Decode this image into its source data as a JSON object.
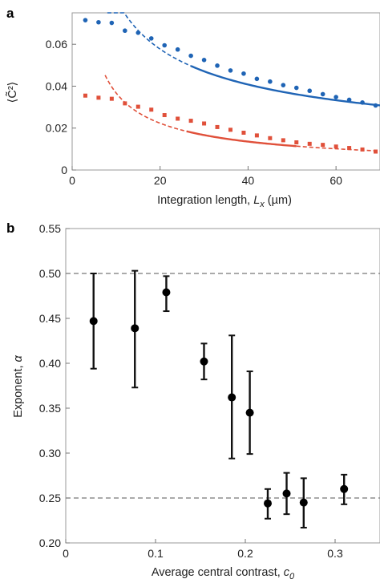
{
  "chart_data": [
    {
      "panel_label": "a",
      "type": "scatter",
      "xlabel": "Integration length, ",
      "xlabel_var": "L",
      "xlabel_sub": "x",
      "xlabel_unit": " (µm)",
      "ylabel": "⟨C̃²⟩",
      "xlim": [
        0,
        70
      ],
      "ylim": [
        0,
        0.075
      ],
      "xticks": [
        "0",
        "20",
        "40",
        "60"
      ],
      "yticks": [
        "0",
        "0.02",
        "0.04",
        "0.06"
      ],
      "series": [
        {
          "color": "#1f64b5",
          "points": [
            [
              3,
              0.0715
            ],
            [
              6,
              0.0705
            ],
            [
              9,
              0.0702
            ],
            [
              12,
              0.0665
            ],
            [
              15,
              0.0655
            ],
            [
              18,
              0.0628
            ],
            [
              21,
              0.0595
            ],
            [
              24,
              0.0575
            ],
            [
              27,
              0.0545
            ],
            [
              30,
              0.0525
            ],
            [
              33,
              0.0498
            ],
            [
              36,
              0.0475
            ],
            [
              39,
              0.046
            ],
            [
              42,
              0.0435
            ],
            [
              45,
              0.0422
            ],
            [
              48,
              0.0405
            ],
            [
              51,
              0.0392
            ],
            [
              54,
              0.0378
            ],
            [
              57,
              0.0362
            ],
            [
              60,
              0.0348
            ],
            [
              63,
              0.0335
            ],
            [
              66,
              0.0322
            ],
            [
              69,
              0.0308
            ]
          ],
          "fit": {
            "form": "power",
            "amp": 0.258,
            "exponent": 0.5,
            "dashed_range": [
              8,
              27
            ],
            "solid_range": [
              27,
              70
            ]
          }
        },
        {
          "color": "#e0503a",
          "points": [
            [
              3,
              0.0355
            ],
            [
              6,
              0.0345
            ],
            [
              9,
              0.034
            ],
            [
              12,
              0.0318
            ],
            [
              15,
              0.0302
            ],
            [
              18,
              0.0288
            ],
            [
              21,
              0.0262
            ],
            [
              24,
              0.0245
            ],
            [
              27,
              0.0235
            ],
            [
              30,
              0.0222
            ],
            [
              33,
              0.0205
            ],
            [
              36,
              0.0192
            ],
            [
              39,
              0.0178
            ],
            [
              42,
              0.0165
            ],
            [
              45,
              0.0152
            ],
            [
              48,
              0.0142
            ],
            [
              51,
              0.0132
            ],
            [
              54,
              0.0125
            ],
            [
              57,
              0.012
            ],
            [
              60,
              0.0112
            ],
            [
              63,
              0.0105
            ],
            [
              66,
              0.0098
            ],
            [
              69,
              0.0088
            ]
          ],
          "fit": {
            "form": "power",
            "amp": 0.193,
            "exponent": 0.72,
            "dashed_range": [
              7.5,
              26
            ],
            "solid_range": [
              26,
              51
            ],
            "dashed_tail": [
              51,
              70
            ]
          }
        }
      ]
    },
    {
      "panel_label": "b",
      "type": "scatter",
      "xlabel": "Average central contrast, ",
      "xlabel_var": "c",
      "xlabel_sub": "0",
      "ylabel": "Exponent, ",
      "ylabel_var": "α",
      "xlim": [
        0,
        0.35
      ],
      "ylim": [
        0.2,
        0.55
      ],
      "xticks": [
        "0",
        "0.1",
        "0.2",
        "0.3"
      ],
      "yticks": [
        "0.20",
        "0.25",
        "0.30",
        "0.35",
        "0.40",
        "0.45",
        "0.50",
        "0.55"
      ],
      "reference_lines": [
        0.5,
        0.25
      ],
      "points": [
        {
          "x": 0.031,
          "y": 0.447,
          "lo": 0.394,
          "hi": 0.5
        },
        {
          "x": 0.077,
          "y": 0.439,
          "lo": 0.373,
          "hi": 0.503
        },
        {
          "x": 0.112,
          "y": 0.479,
          "lo": 0.458,
          "hi": 0.497
        },
        {
          "x": 0.154,
          "y": 0.402,
          "lo": 0.382,
          "hi": 0.422
        },
        {
          "x": 0.185,
          "y": 0.362,
          "lo": 0.294,
          "hi": 0.431
        },
        {
          "x": 0.205,
          "y": 0.345,
          "lo": 0.299,
          "hi": 0.391
        },
        {
          "x": 0.225,
          "y": 0.244,
          "lo": 0.227,
          "hi": 0.26
        },
        {
          "x": 0.246,
          "y": 0.255,
          "lo": 0.232,
          "hi": 0.278
        },
        {
          "x": 0.265,
          "y": 0.245,
          "lo": 0.217,
          "hi": 0.272
        },
        {
          "x": 0.31,
          "y": 0.26,
          "lo": 0.243,
          "hi": 0.276
        }
      ]
    }
  ]
}
